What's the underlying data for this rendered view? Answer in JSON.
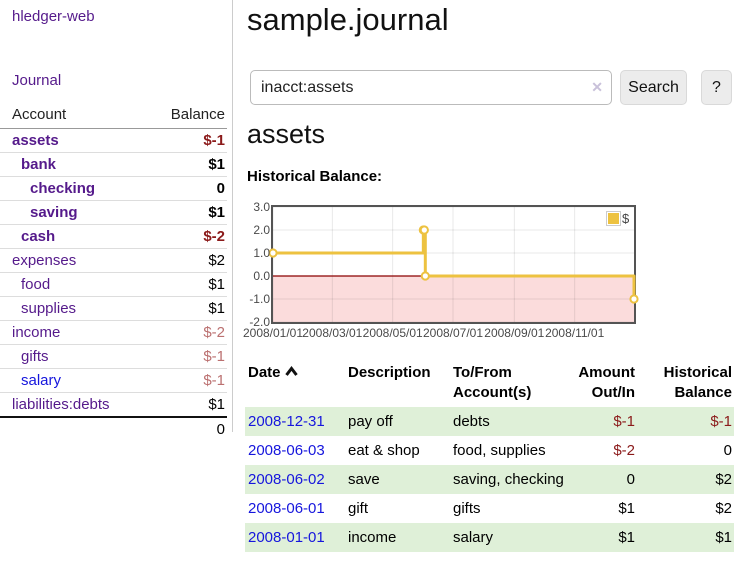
{
  "sidebar": {
    "app_title": "hledger-web",
    "nav": {
      "journal_label": "Journal"
    },
    "accounts_table": {
      "headers": {
        "account": "Account",
        "balance": "Balance"
      },
      "rows": [
        {
          "name": "assets",
          "depth": 1,
          "bold": true,
          "balance": "$-1",
          "balance_color": "neg-strong",
          "link": "visited"
        },
        {
          "name": "bank",
          "depth": 2,
          "bold": true,
          "balance": "$1",
          "balance_color": "normal",
          "link": "visited"
        },
        {
          "name": "checking",
          "depth": 3,
          "bold": true,
          "balance": "0",
          "balance_color": "normal",
          "link": "visited"
        },
        {
          "name": "saving",
          "depth": 3,
          "bold": true,
          "balance": "$1",
          "balance_color": "normal",
          "link": "visited"
        },
        {
          "name": "cash",
          "depth": 2,
          "bold": true,
          "balance": "$-2",
          "balance_color": "neg-strong",
          "link": "visited"
        },
        {
          "name": "expenses",
          "depth": 1,
          "bold": false,
          "balance": "$2",
          "balance_color": "normal",
          "link": "visited"
        },
        {
          "name": "food",
          "depth": 2,
          "bold": false,
          "balance": "$1",
          "balance_color": "normal",
          "link": "visited"
        },
        {
          "name": "supplies",
          "depth": 2,
          "bold": false,
          "balance": "$1",
          "balance_color": "normal",
          "link": "visited"
        },
        {
          "name": "income",
          "depth": 1,
          "bold": false,
          "balance": "$-2",
          "balance_color": "neg-muted",
          "link": "visited"
        },
        {
          "name": "gifts",
          "depth": 2,
          "bold": false,
          "balance": "$-1",
          "balance_color": "neg-muted",
          "link": "visited"
        },
        {
          "name": "salary",
          "depth": 2,
          "bold": false,
          "balance": "$-1",
          "balance_color": "neg-muted",
          "link": "unvisited"
        },
        {
          "name": "liabilities:debts",
          "depth": 1,
          "bold": false,
          "balance": "$1",
          "balance_color": "normal",
          "link": "visited"
        }
      ],
      "total": "0"
    }
  },
  "main": {
    "title": "sample.journal",
    "search": {
      "value": "inacct:assets",
      "clear_icon": "✕",
      "button_label": "Search",
      "help_label": "?"
    },
    "account_heading": "assets",
    "chart_label": "Historical Balance:",
    "register": {
      "headers": {
        "date": "Date",
        "description": "Description",
        "accounts": "To/From Account(s)",
        "amount": "Amount Out/In",
        "balance": "Historical Balance"
      },
      "rows": [
        {
          "date": "2008-12-31",
          "description": "pay off",
          "accounts": "debts",
          "amount": "$-1",
          "amount_negative": true,
          "balance": "$-1",
          "balance_negative": true
        },
        {
          "date": "2008-06-03",
          "description": "eat & shop",
          "accounts": "food, supplies",
          "amount": "$-2",
          "amount_negative": true,
          "balance": "0",
          "balance_negative": false
        },
        {
          "date": "2008-06-02",
          "description": "save",
          "accounts": "saving, checking",
          "amount": "0",
          "amount_negative": false,
          "balance": "$2",
          "balance_negative": false
        },
        {
          "date": "2008-06-01",
          "description": "gift",
          "accounts": "gifts",
          "amount": "$1",
          "amount_negative": false,
          "balance": "$2",
          "balance_negative": false
        },
        {
          "date": "2008-01-01",
          "description": "income",
          "accounts": "salary",
          "amount": "$1",
          "amount_negative": false,
          "balance": "$1",
          "balance_negative": false
        }
      ]
    }
  },
  "chart_data": {
    "type": "line",
    "title": "Historical Balance",
    "step": true,
    "series": [
      {
        "name": "$",
        "color": "#edc240",
        "points": [
          [
            "2008-01-01",
            1
          ],
          [
            "2008-06-01",
            2
          ],
          [
            "2008-06-02",
            2
          ],
          [
            "2008-06-03",
            0
          ],
          [
            "2008-12-31",
            -1
          ]
        ]
      }
    ],
    "x_range": [
      "2008-01-01",
      "2008-12-31"
    ],
    "x_ticks": [
      "2008/01/01",
      "2008/03/01",
      "2008/05/01",
      "2008/07/01",
      "2008/09/01",
      "2008/11/01"
    ],
    "y_ticks": [
      3.0,
      2.0,
      1.0,
      0.0,
      -1.0,
      -2.0
    ],
    "ylim": [
      -2,
      3
    ],
    "grid": true,
    "legend_position": "top-right",
    "negative_region_color": "#fbdcdc",
    "zero_line_color": "#8b0000",
    "border_color": "#545454"
  },
  "colors": {
    "link_visited": "#551a8b",
    "link_unvisited": "#1616dd",
    "negative_strong": "#8b1a1a",
    "negative_muted": "#bb7070",
    "row_stripe_green": "#dff0d8",
    "series_gold": "#edc240"
  }
}
